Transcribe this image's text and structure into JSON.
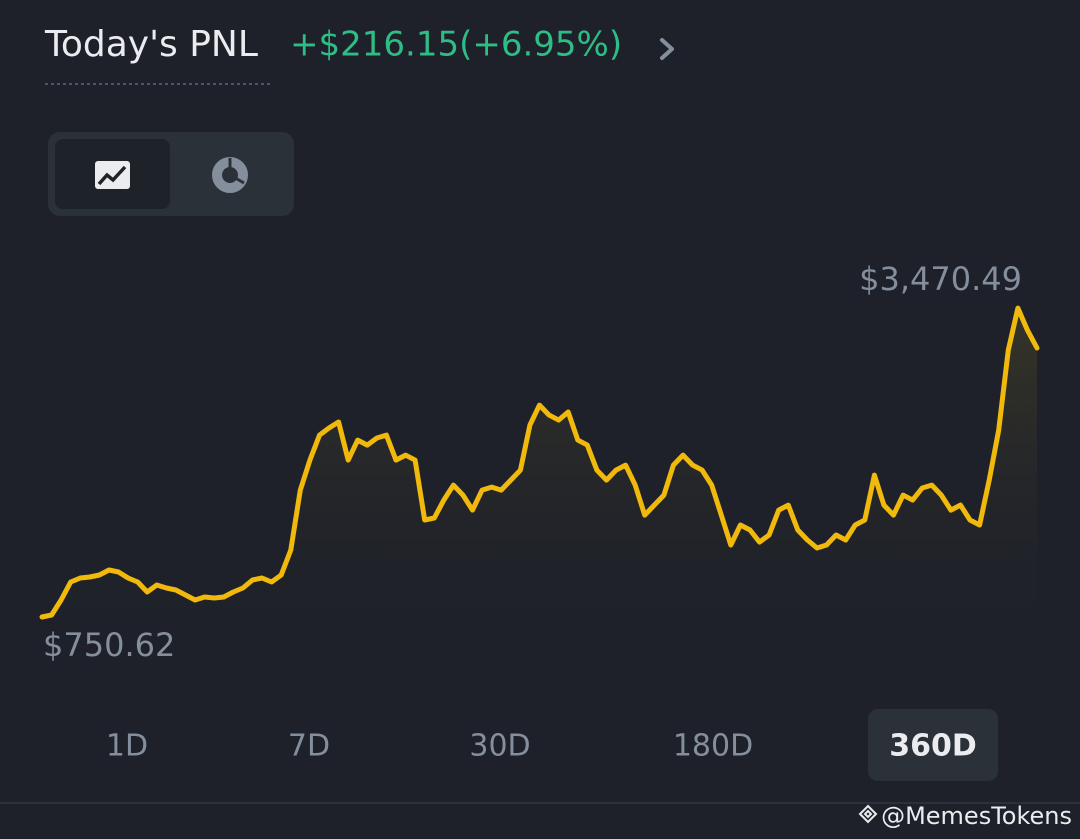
{
  "header": {
    "title": "Today's PNL",
    "pnl": "+$216.15(+6.95%)"
  },
  "chart_data": {
    "type": "line",
    "color": "#f0b90b",
    "max": {
      "value": 3470.49,
      "label": "$3,470.49"
    },
    "min": {
      "value": 750.62,
      "label": "$750.62"
    },
    "values": [
      751,
      768,
      900,
      1059,
      1094,
      1103,
      1120,
      1164,
      1147,
      1094,
      1059,
      971,
      1032,
      1006,
      988,
      944,
      900,
      927,
      918,
      927,
      971,
      1006,
      1076,
      1094,
      1059,
      1120,
      1340,
      1868,
      2132,
      2352,
      2414,
      2467,
      2132,
      2308,
      2264,
      2326,
      2352,
      2132,
      2176,
      2132,
      1604,
      1622,
      1780,
      1912,
      1824,
      1692,
      1868,
      1894,
      1868,
      1956,
      2044,
      2440,
      2616,
      2528,
      2484,
      2555,
      2308,
      2264,
      2044,
      1956,
      2044,
      2088,
      1912,
      1648,
      1736,
      1824,
      2088,
      2176,
      2088,
      2044,
      1912,
      1648,
      1384,
      1560,
      1516,
      1410,
      1472,
      1692,
      1736,
      1516,
      1428,
      1358,
      1384,
      1472,
      1428,
      1560,
      1604,
      2000,
      1736,
      1648,
      1824,
      1780,
      1886,
      1912,
      1824,
      1692,
      1736,
      1604,
      1560,
      1956,
      2396,
      3100,
      3470,
      3276,
      3118
    ]
  },
  "tabs": {
    "items": [
      "1D",
      "7D",
      "30D",
      "180D",
      "360D"
    ],
    "selected": 4
  },
  "watermark": "@MemesTokens"
}
